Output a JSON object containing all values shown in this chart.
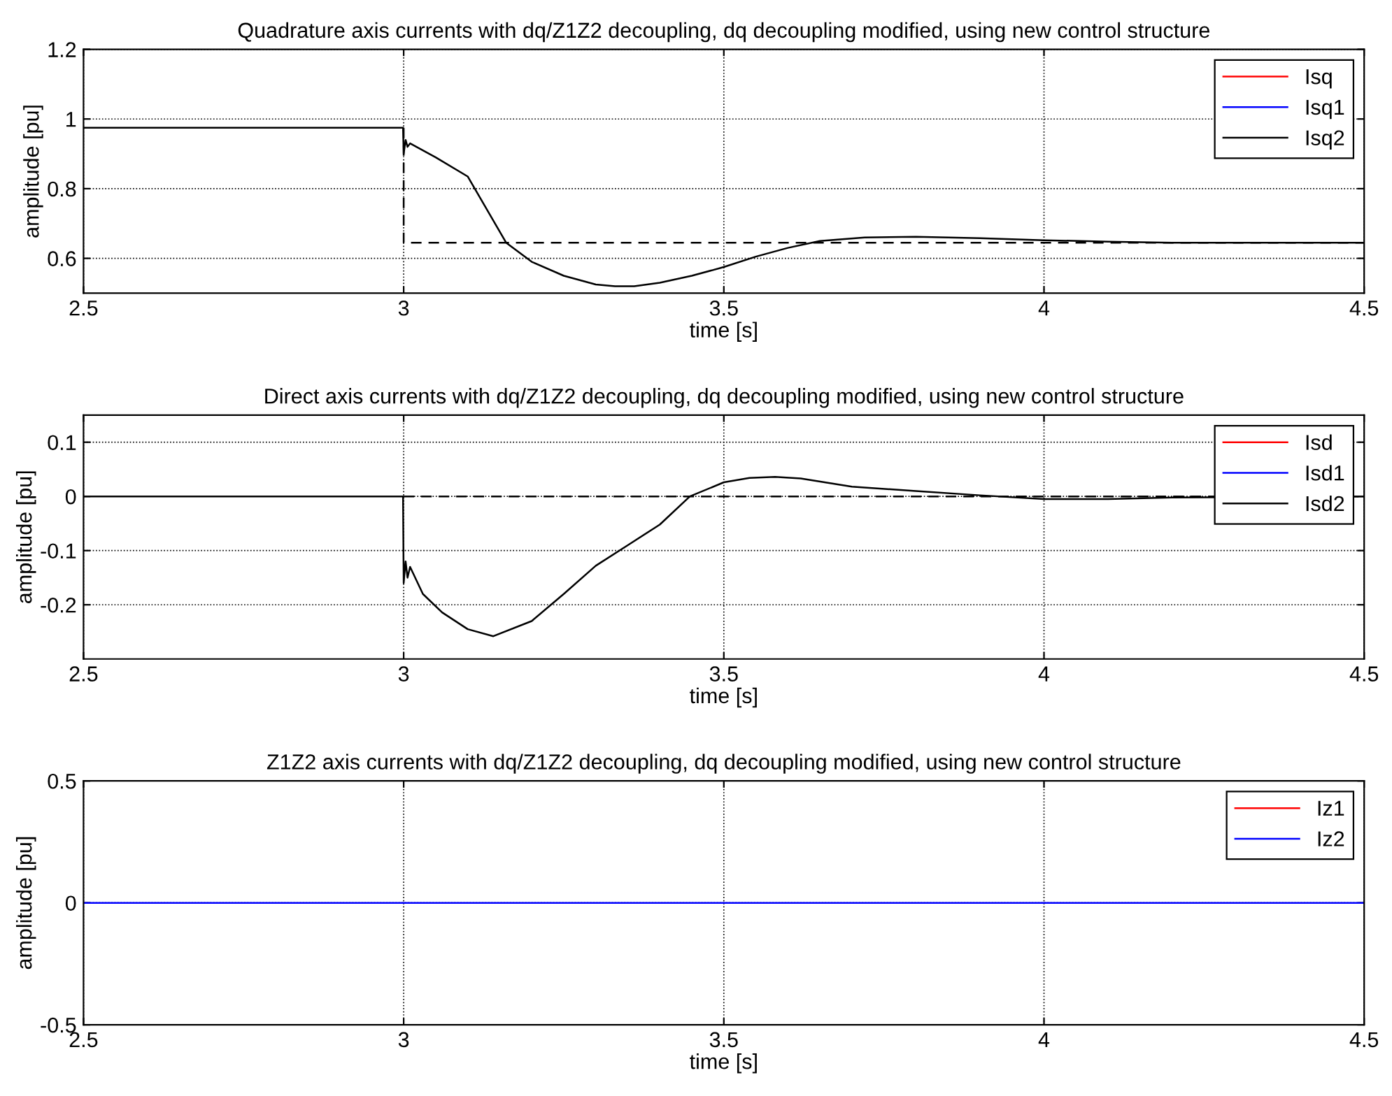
{
  "chart_data": [
    {
      "type": "line",
      "title": "Quadrature axis currents with dq/Z1Z2 decoupling, dq decoupling modified, using new control structure",
      "xlabel": "time [s]",
      "ylabel": "amplitude [pu]",
      "xlim": [
        2.5,
        4.5
      ],
      "xticks": [
        2.5,
        3,
        3.5,
        4,
        4.5
      ],
      "ylim": [
        0.5,
        1.2
      ],
      "yticks": [
        0.6,
        0.8,
        1,
        1.2
      ],
      "grid": true,
      "legend": "top right",
      "series": [
        {
          "name": "Isq",
          "color": "#ff0000"
        },
        {
          "name": "Isq1",
          "color": "#0000ff"
        },
        {
          "name": "Isq2",
          "color": "#000000",
          "x": [
            2.5,
            2.999,
            3.0,
            3.003,
            3.006,
            3.01,
            3.05,
            3.1,
            3.16,
            3.2,
            3.25,
            3.3,
            3.33,
            3.36,
            3.4,
            3.45,
            3.5,
            3.55,
            3.6,
            3.65,
            3.72,
            3.8,
            3.9,
            4.0,
            4.1,
            4.2,
            4.5
          ],
          "values": [
            0.975,
            0.975,
            0.9,
            0.94,
            0.92,
            0.93,
            0.89,
            0.835,
            0.645,
            0.59,
            0.55,
            0.525,
            0.52,
            0.52,
            0.53,
            0.55,
            0.575,
            0.605,
            0.63,
            0.65,
            0.66,
            0.662,
            0.658,
            0.652,
            0.648,
            0.645,
            0.645
          ]
        },
        {
          "color": "#000000",
          "line_style": "dashed",
          "x": [
            3.0,
            3.0,
            4.5
          ],
          "values": [
            0.975,
            0.645,
            0.645
          ]
        }
      ]
    },
    {
      "type": "line",
      "title": "Direct axis currents with dq/Z1Z2 decoupling, dq decoupling modified, using new control structure",
      "xlabel": "time [s]",
      "ylabel": "amplitude [pu]",
      "xlim": [
        2.5,
        4.5
      ],
      "xticks": [
        2.5,
        3,
        3.5,
        4,
        4.5
      ],
      "ylim": [
        -0.3,
        0.15
      ],
      "yticks": [
        -0.2,
        -0.1,
        0,
        0.1
      ],
      "grid": true,
      "legend": "top right",
      "series": [
        {
          "name": "Isd",
          "color": "#ff0000"
        },
        {
          "name": "Isd1",
          "color": "#0000ff"
        },
        {
          "name": "Isd2",
          "color": "#000000",
          "x": [
            2.5,
            2.999,
            3.0,
            3.003,
            3.006,
            3.01,
            3.03,
            3.06,
            3.1,
            3.14,
            3.2,
            3.25,
            3.3,
            3.35,
            3.4,
            3.447,
            3.5,
            3.54,
            3.58,
            3.62,
            3.7,
            3.8,
            3.9,
            4.0,
            4.1,
            4.2,
            4.5
          ],
          "values": [
            0,
            0,
            -0.16,
            -0.12,
            -0.15,
            -0.13,
            -0.18,
            -0.214,
            -0.245,
            -0.258,
            -0.23,
            -0.18,
            -0.128,
            -0.09,
            -0.052,
            0,
            0.026,
            0.034,
            0.036,
            0.033,
            0.018,
            0.01,
            0.002,
            -0.005,
            -0.005,
            -0.002,
            0
          ]
        },
        {
          "color": "#000000",
          "line_style": "dashed",
          "x": [
            3.0,
            4.5
          ],
          "values": [
            0,
            0
          ]
        }
      ]
    },
    {
      "type": "line",
      "title": "Z1Z2 axis currents with dq/Z1Z2 decoupling, dq decoupling modified, using new control structure",
      "xlabel": "time [s]",
      "ylabel": "amplitude [pu]",
      "xlim": [
        2.5,
        4.5
      ],
      "xticks": [
        2.5,
        3,
        3.5,
        4,
        4.5
      ],
      "ylim": [
        -0.5,
        0.5
      ],
      "yticks": [
        -0.5,
        0,
        0.5
      ],
      "grid": true,
      "legend": "top right",
      "series": [
        {
          "name": "Iz1",
          "color": "#ff0000"
        },
        {
          "name": "Iz2",
          "color": "#0000ff",
          "x": [
            2.5,
            4.5
          ],
          "values": [
            0,
            0
          ]
        }
      ]
    }
  ]
}
